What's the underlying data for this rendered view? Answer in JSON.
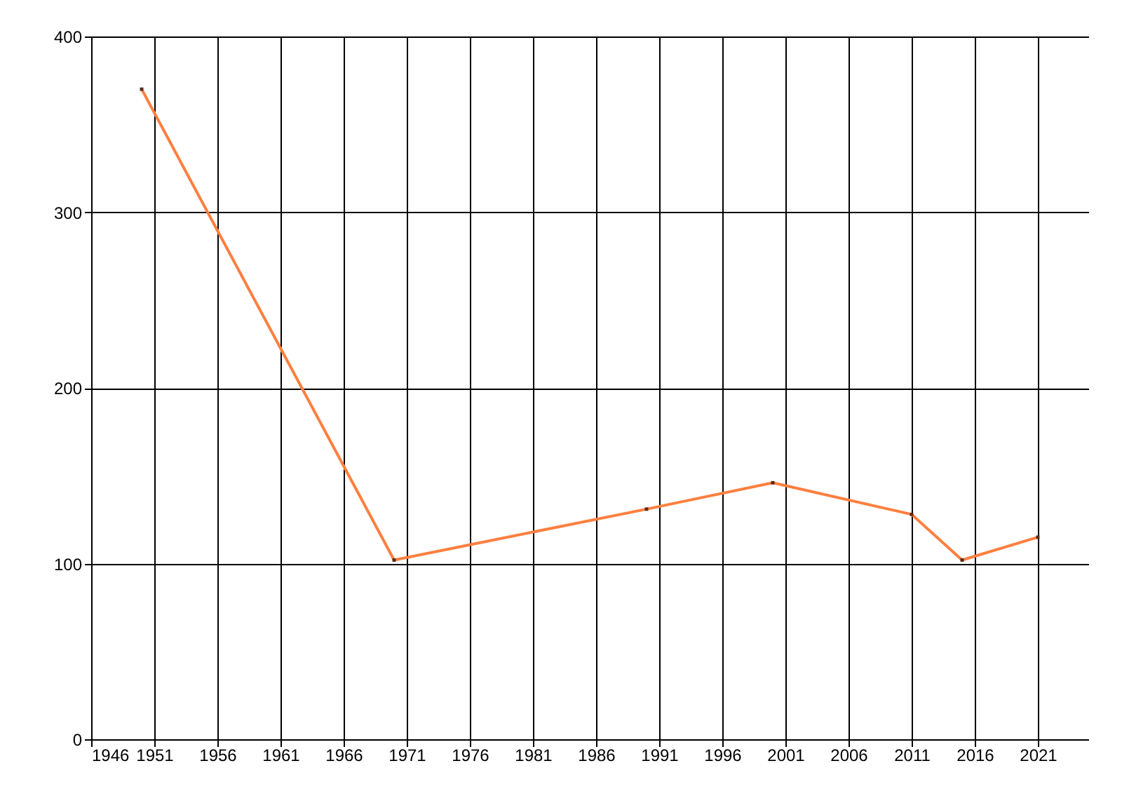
{
  "chart_data": {
    "type": "line",
    "x": [
      1950,
      1970,
      1990,
      2000,
      2011,
      2015,
      2021
    ],
    "series": [
      {
        "color": "#ff7f3f",
        "values": [
          370,
          102,
          131,
          146,
          128,
          102,
          115
        ]
      }
    ],
    "xlim": [
      1946,
      2025
    ],
    "xticks": [
      1946,
      1951,
      1956,
      1961,
      1966,
      1971,
      1976,
      1981,
      1986,
      1991,
      1996,
      2001,
      2006,
      2011,
      2016,
      2021
    ],
    "ylim": [
      0,
      400
    ],
    "yticks": [
      0,
      100,
      200,
      300,
      400
    ],
    "grid": true,
    "marker": "square",
    "line_style": "solid"
  }
}
